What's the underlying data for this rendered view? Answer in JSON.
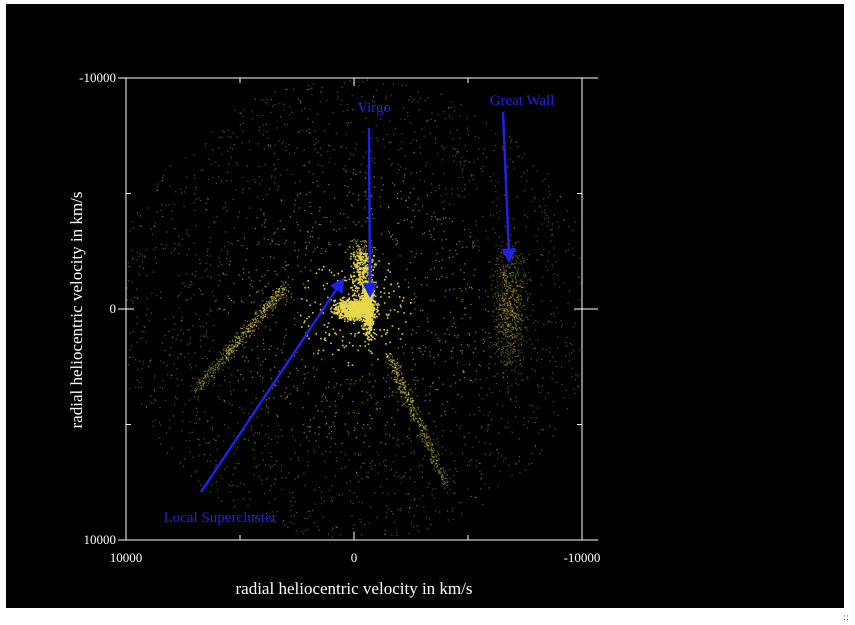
{
  "chart_data": {
    "type": "scatter",
    "xlabel": "radial heliocentric velocity in km/s",
    "ylabel": "radial heliocentric velocity in km/s",
    "xlim": [
      10000,
      -10000
    ],
    "ylim": [
      10000,
      -10000
    ],
    "xticks": [
      10000,
      0,
      -10000
    ],
    "yticks": [
      -10000,
      0,
      10000
    ],
    "xtick_labels": [
      "10000",
      "0",
      "-10000"
    ],
    "ytick_labels": [
      "-10000",
      "0",
      "10000"
    ],
    "grid": false,
    "series": [
      {
        "color": "#e8d84a",
        "description_points": [
          [
            0.0,
            0.0
          ],
          [
            -500,
            300
          ],
          [
            500,
            -200
          ],
          [
            -1000,
            -100
          ],
          [
            1000,
            100
          ],
          [
            -1500,
            200
          ],
          [
            1500,
            0
          ],
          [
            2000,
            300
          ],
          [
            -2000,
            -200
          ],
          [
            -300,
            -600
          ],
          [
            -800,
            1200
          ],
          [
            900,
            -1500
          ],
          [
            -600,
            -1800
          ],
          [
            1800,
            -2500
          ],
          [
            -1700,
            2200
          ],
          [
            3000,
            -3000
          ],
          [
            -3000,
            3000
          ],
          [
            2500,
            3500
          ],
          [
            -2500,
            -3800
          ],
          [
            4500,
            -1000
          ],
          [
            -4500,
            1200
          ],
          [
            -6500,
            -1500
          ],
          [
            6500,
            -2000
          ],
          [
            -6500,
            1800
          ],
          [
            7000,
            3500
          ],
          [
            -7000,
            -3500
          ],
          [
            4000,
            6500
          ],
          [
            -4000,
            -7000
          ],
          [
            -5500,
            7000
          ],
          [
            5500,
            -7500
          ],
          [
            -2000,
            7500
          ],
          [
            2000,
            -7800
          ],
          [
            -8500,
            500
          ],
          [
            8500,
            -500
          ],
          [
            -1000,
            9000
          ],
          [
            1500,
            -9000
          ],
          [
            3500,
            8200
          ],
          [
            -3500,
            -8200
          ],
          [
            8000,
            6000
          ],
          [
            -8000,
            -6000
          ]
        ]
      }
    ],
    "annotations": [
      {
        "text": "Virgo",
        "at": [
          -700,
          -800
        ]
      },
      {
        "text": "Great Wall",
        "at": [
          -6800,
          -2300
        ]
      },
      {
        "text": "Local Supercluster",
        "at": [
          600,
          -1100
        ]
      }
    ],
    "annotation_color": "#1e22e6"
  }
}
